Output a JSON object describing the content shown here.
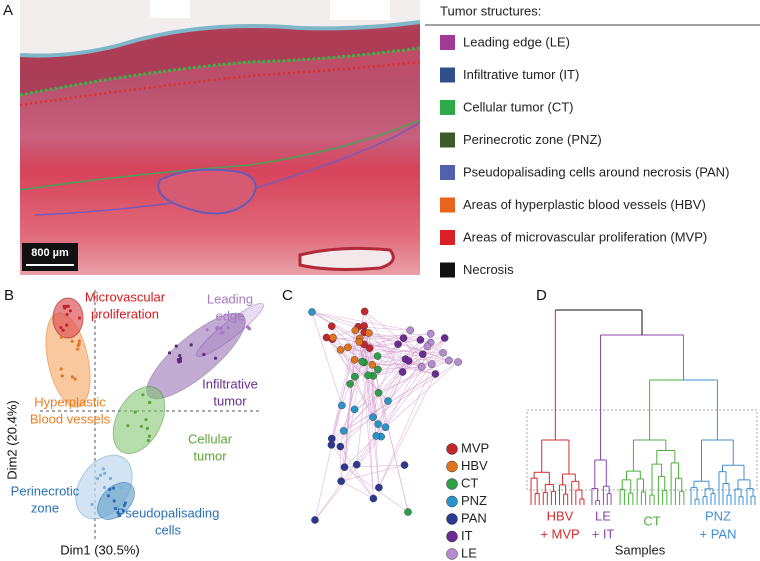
{
  "panel_a": {
    "letter": "A",
    "scale_bar": "800 µm",
    "legend_title": "Tumor structures:",
    "legend": [
      {
        "label": "Leading edge (LE)",
        "color": "#a03a95"
      },
      {
        "label": "Infiltrative tumor (IT)",
        "color": "#2f4f8a"
      },
      {
        "label": "Cellular tumor (CT)",
        "color": "#2eaa48"
      },
      {
        "label": "Perinecrotic zone (PNZ)",
        "color": "#3d5a2a"
      },
      {
        "label": "Pseudopalisading cells around necrosis (PAN)",
        "color": "#5161ad"
      },
      {
        "label": "Areas of hyperplastic blood vessels (HBV)",
        "color": "#e8641e"
      },
      {
        "label": "Areas of microvascular proliferation (MVP)",
        "color": "#dc1f26"
      },
      {
        "label": "Necrosis",
        "color": "#111111"
      }
    ]
  },
  "panel_b": {
    "letter": "B",
    "x_label": "Dim1 (30.5%)",
    "y_label": "Dim2 (20.4%)",
    "groups": [
      {
        "lines": [
          "Microvascular",
          "proliferation"
        ],
        "color": "#d7191c"
      },
      {
        "lines": [
          "Leading",
          "edge"
        ],
        "color": "#a779c4"
      },
      {
        "lines": [
          "Infiltrative",
          "tumor"
        ],
        "color": "#6a2c91"
      },
      {
        "lines": [
          "Hyperplastic",
          "Blood vessels"
        ],
        "color": "#ee7d22"
      },
      {
        "lines": [
          "Cellular",
          "tumor"
        ],
        "color": "#5fa532"
      },
      {
        "lines": [
          "Perinecrotic",
          "zone"
        ],
        "color": "#2a6fb5"
      },
      {
        "lines": [
          "Pseudopalisading",
          "cells"
        ],
        "color": "#2a6fb5"
      }
    ]
  },
  "panel_c": {
    "letter": "C",
    "legend": [
      {
        "label": "MVP",
        "color": "#c0282d"
      },
      {
        "label": "HBV",
        "color": "#e0731d"
      },
      {
        "label": "CT",
        "color": "#2e9e48"
      },
      {
        "label": "PNZ",
        "color": "#2a93c9"
      },
      {
        "label": "PAN",
        "color": "#2b3990"
      },
      {
        "label": "IT",
        "color": "#6a2c91"
      },
      {
        "label": "LE",
        "color": "#b58ccf"
      }
    ]
  },
  "panel_d": {
    "letter": "D",
    "x_label": "Samples",
    "groups": [
      {
        "lines": [
          "HBV",
          "+ MVP"
        ],
        "color": "#d62b2b"
      },
      {
        "lines": [
          "LE",
          "+ IT"
        ],
        "color": "#8e44ad"
      },
      {
        "lines": [
          "CT"
        ],
        "color": "#4caf3c"
      },
      {
        "lines": [
          "PNZ",
          "+ PAN"
        ],
        "color": "#3f8fd0"
      }
    ]
  }
}
